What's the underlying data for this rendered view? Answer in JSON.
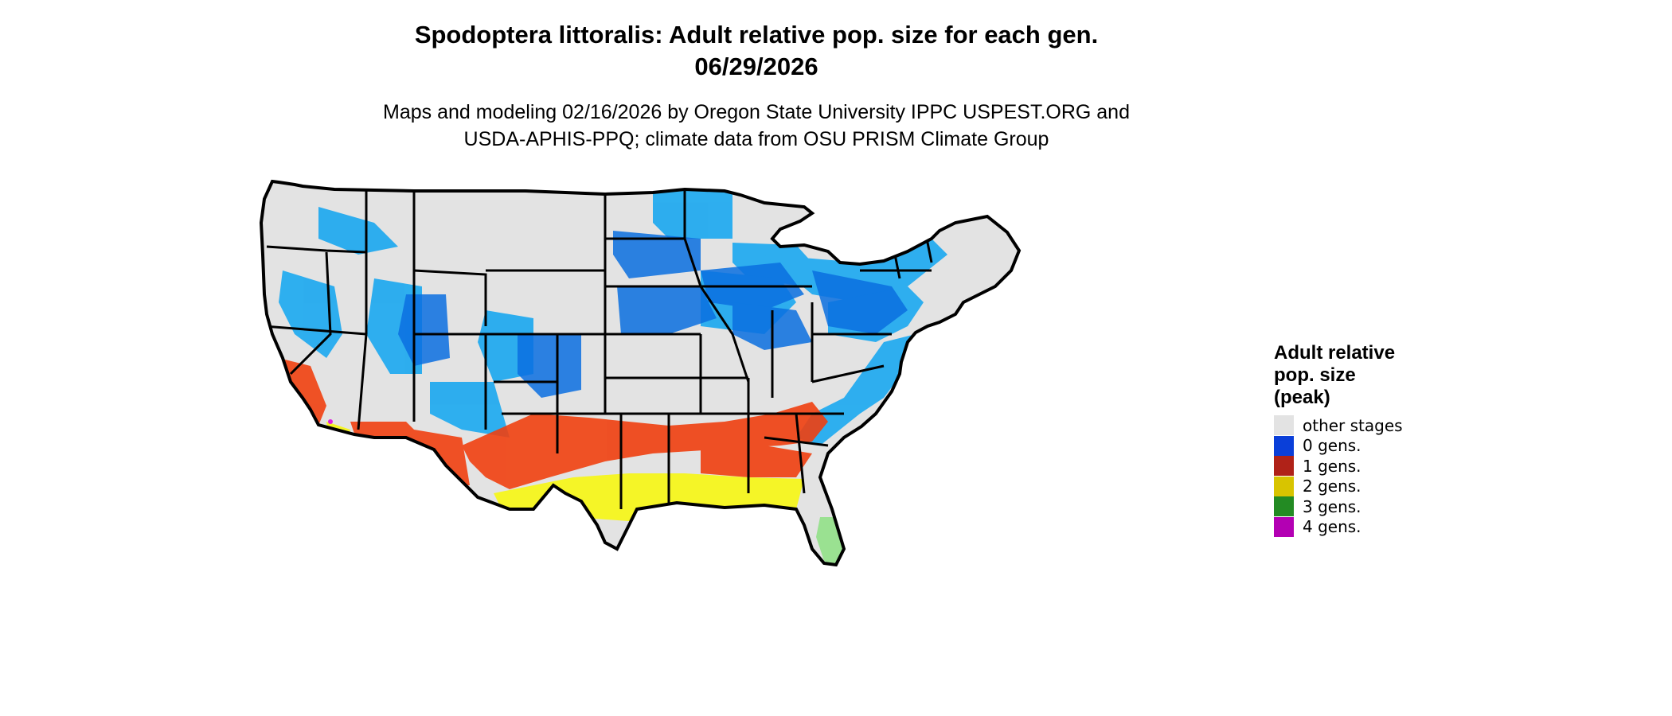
{
  "title": {
    "line1": "Spodoptera littoralis: Adult relative pop. size for each gen.",
    "line2": "06/29/2026"
  },
  "subtitle": {
    "line1": "Maps and modeling 02/16/2026 by Oregon State University IPPC USPEST.ORG and",
    "line2": "USDA-APHIS-PPQ; climate data from OSU PRISM Climate Group"
  },
  "legend": {
    "title_lines": [
      "Adult relative",
      "pop. size",
      "(peak)"
    ],
    "items": [
      {
        "label": "other stages",
        "color": "#e3e3e3"
      },
      {
        "label": "0 gens.",
        "color": "#0a3fd9"
      },
      {
        "label": "1 gens.",
        "color": "#b02218"
      },
      {
        "label": "2 gens.",
        "color": "#d8c400"
      },
      {
        "label": "3 gens.",
        "color": "#238b23"
      },
      {
        "label": "4 gens.",
        "color": "#b300b3"
      }
    ]
  },
  "map_colors": {
    "background": "#e3e3e3",
    "zero_gen_light": "#1aa8f0",
    "zero_gen_dark": "#0a6fe0",
    "one_gen": "#f04010",
    "two_gen": "#f5f51c",
    "three_gen": "#96e08c",
    "four_gen": "#e020e0",
    "boundary": "#000000"
  }
}
